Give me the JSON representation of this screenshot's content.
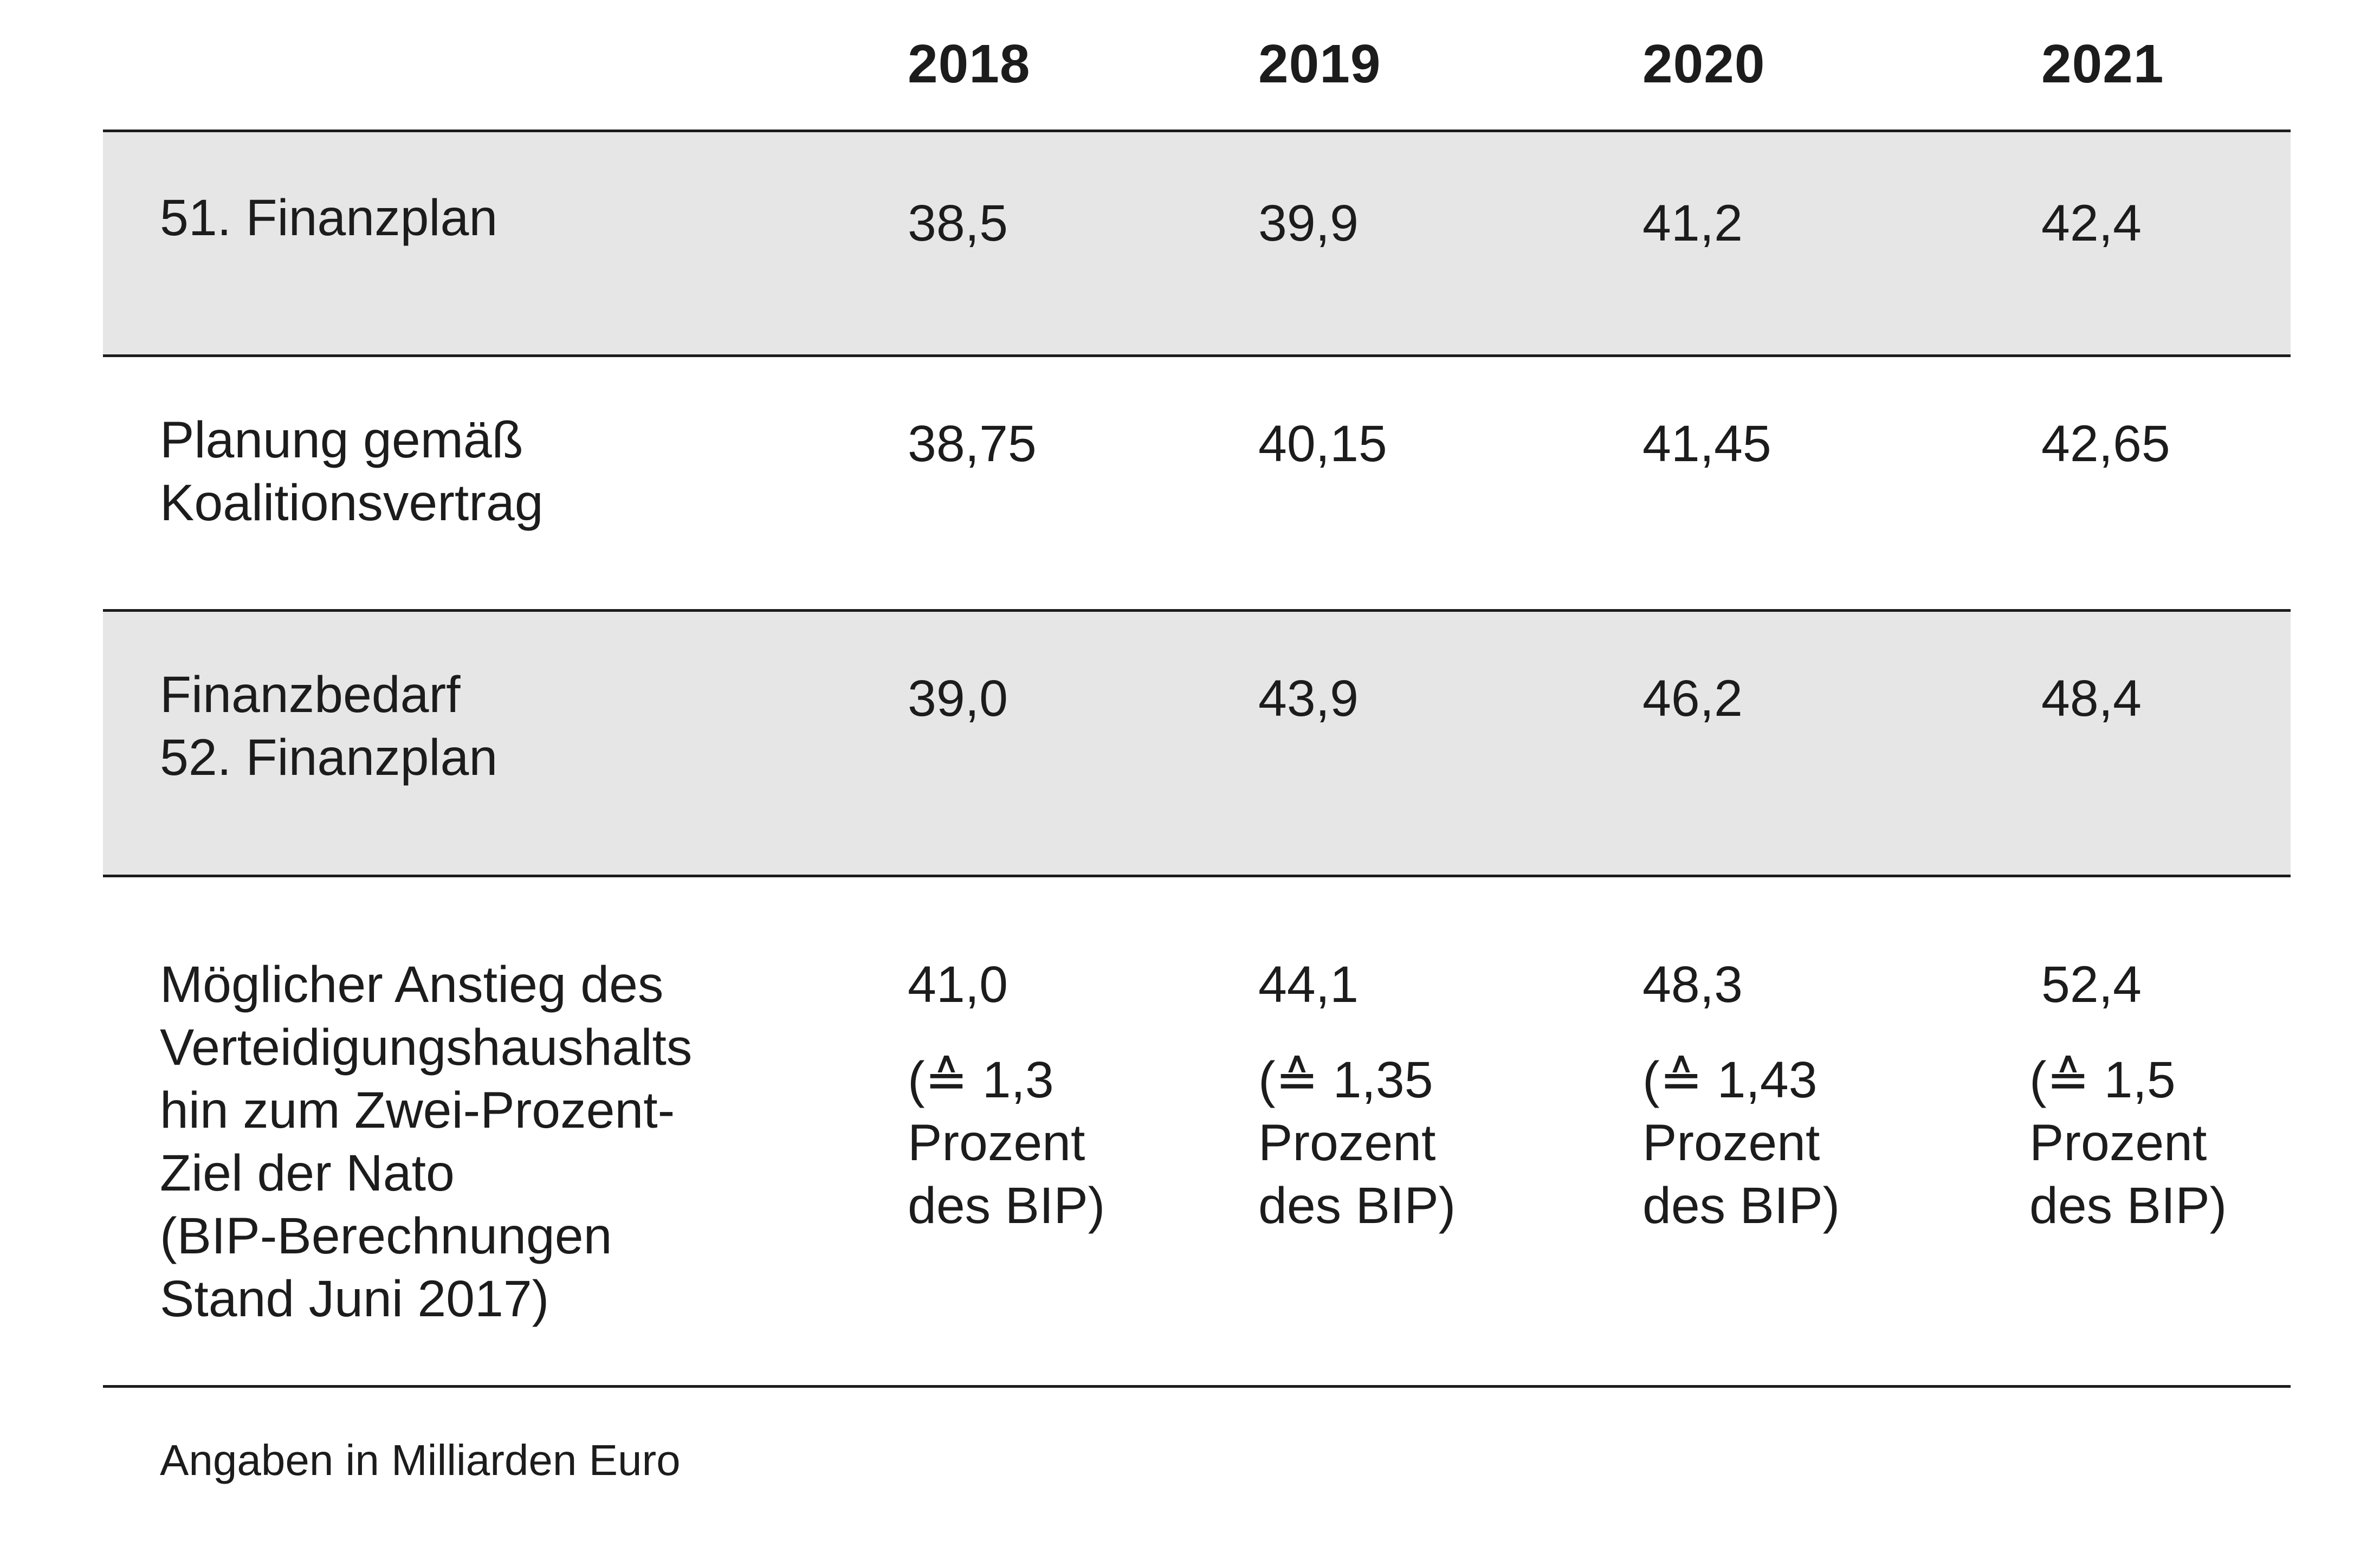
{
  "table": {
    "header": [
      "2018",
      "2019",
      "2020",
      "2021"
    ],
    "rows": [
      {
        "label": "51. Finanzplan",
        "values": [
          "38,5",
          "39,9",
          "41,2",
          "42,4"
        ]
      },
      {
        "label": "Planung gemäß\nKoalitionsvertrag",
        "values": [
          "38,75",
          "40,15",
          "41,45",
          "42,65"
        ]
      },
      {
        "label": "Finanzbedarf\n52. Finanzplan",
        "values": [
          "39,0",
          "43,9",
          "46,2",
          "48,4"
        ]
      },
      {
        "label": "Möglicher Anstieg des\nVerteidigungshaushalts\nhin zum Zwei-Prozent-\nZiel der Nato\n(BIP-Berechnungen\nStand Juni 2017)",
        "values": [
          "41,0",
          "44,1",
          "48,3",
          "52,4"
        ],
        "notes": [
          "(≙ 1,3\nProzent\ndes BIP)",
          "(≙ 1,35\nProzent\ndes BIP)",
          "(≙ 1,43\nProzent\ndes BIP)",
          "(≙ 1,5\nProzent\ndes BIP)"
        ]
      }
    ]
  },
  "footnote": "Angaben in Milliarden Euro",
  "colors": {
    "shaded_row": "#e6e6e6",
    "text": "#1c1c1c",
    "rule": "#1c1c1c"
  }
}
